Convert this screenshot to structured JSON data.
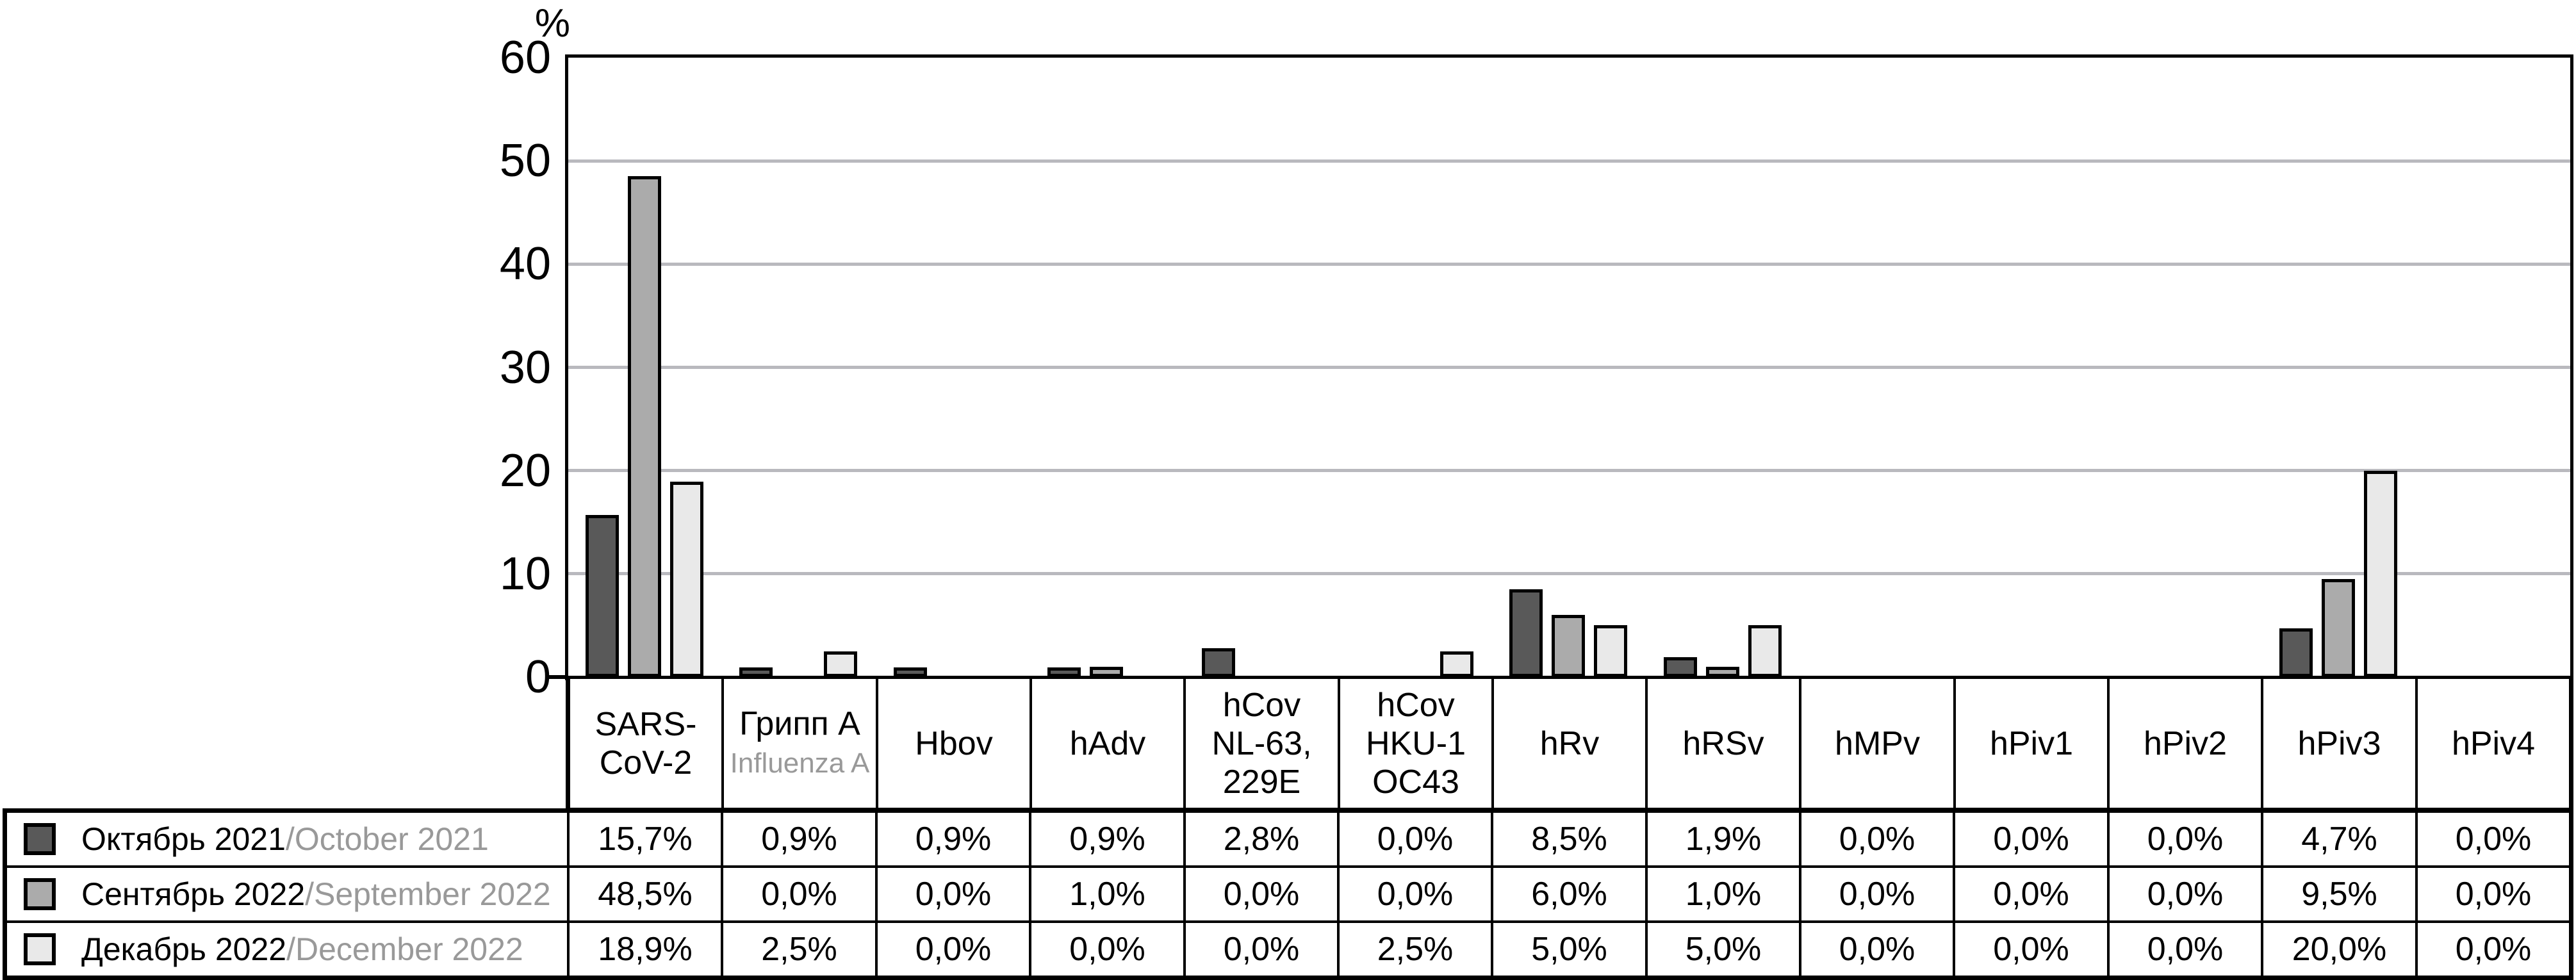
{
  "chart_data": {
    "type": "bar",
    "ylabel": "%",
    "ylim": [
      0,
      60
    ],
    "yticks": [
      0,
      10,
      20,
      30,
      40,
      50,
      60
    ],
    "grid": "horizontal",
    "legend_position": "table-rows-left",
    "categories": [
      {
        "label_lines": [
          "SARS-",
          "CoV-2"
        ],
        "sublabel": ""
      },
      {
        "label_lines": [
          "Грипп A"
        ],
        "sublabel": "Influenza A"
      },
      {
        "label_lines": [
          "Hbov"
        ],
        "sublabel": ""
      },
      {
        "label_lines": [
          "hAdv"
        ],
        "sublabel": ""
      },
      {
        "label_lines": [
          "hCov",
          "NL-63,",
          "229E"
        ],
        "sublabel": ""
      },
      {
        "label_lines": [
          "hCov",
          "HKU-1",
          "OC43"
        ],
        "sublabel": ""
      },
      {
        "label_lines": [
          "hRv"
        ],
        "sublabel": ""
      },
      {
        "label_lines": [
          "hRSv"
        ],
        "sublabel": ""
      },
      {
        "label_lines": [
          "hMPv"
        ],
        "sublabel": ""
      },
      {
        "label_lines": [
          "hPiv1"
        ],
        "sublabel": ""
      },
      {
        "label_lines": [
          "hPiv2"
        ],
        "sublabel": ""
      },
      {
        "label_lines": [
          "hPiv3"
        ],
        "sublabel": ""
      },
      {
        "label_lines": [
          "hPiv4"
        ],
        "sublabel": ""
      }
    ],
    "series": [
      {
        "label_ru": "Октябрь 2021",
        "label_en": "October 2021",
        "color": "#595959",
        "values": [
          15.7,
          0.9,
          0.9,
          0.9,
          2.8,
          0,
          8.5,
          1.9,
          0,
          0,
          0,
          4.7,
          0
        ],
        "values_display": [
          "15,7%",
          "0,9%",
          "0,9%",
          "0,9%",
          "2,8%",
          "0,0%",
          "8,5%",
          "1,9%",
          "0,0%",
          "0,0%",
          "0,0%",
          "4,7%",
          "0,0%"
        ]
      },
      {
        "label_ru": "Сентябрь 2022",
        "label_en": "September 2022",
        "color": "#ABABAB",
        "values": [
          48.5,
          0,
          0,
          1.0,
          0,
          0,
          6.0,
          1.0,
          0,
          0,
          0,
          9.5,
          0
        ],
        "values_display": [
          "48,5%",
          "0,0%",
          "0,0%",
          "1,0%",
          "0,0%",
          "0,0%",
          "6,0%",
          "1,0%",
          "0,0%",
          "0,0%",
          "0,0%",
          "9,5%",
          "0,0%"
        ]
      },
      {
        "label_ru": "Декабрь 2022",
        "label_en": "December 2022",
        "color": "#E9E9E9",
        "values": [
          18.9,
          2.5,
          0,
          0,
          0,
          2.5,
          5.0,
          5.0,
          0,
          0,
          0,
          20.0,
          0
        ],
        "values_display": [
          "18,9%",
          "2,5%",
          "0,0%",
          "0,0%",
          "0,0%",
          "2,5%",
          "5,0%",
          "5,0%",
          "0,0%",
          "0,0%",
          "0,0%",
          "20,0%",
          "0,0%"
        ]
      }
    ],
    "colors": {
      "axis": "#000000",
      "gridline": "#B9B9BE",
      "secondary_text": "#999999",
      "cell_background": "#ffffff"
    }
  }
}
